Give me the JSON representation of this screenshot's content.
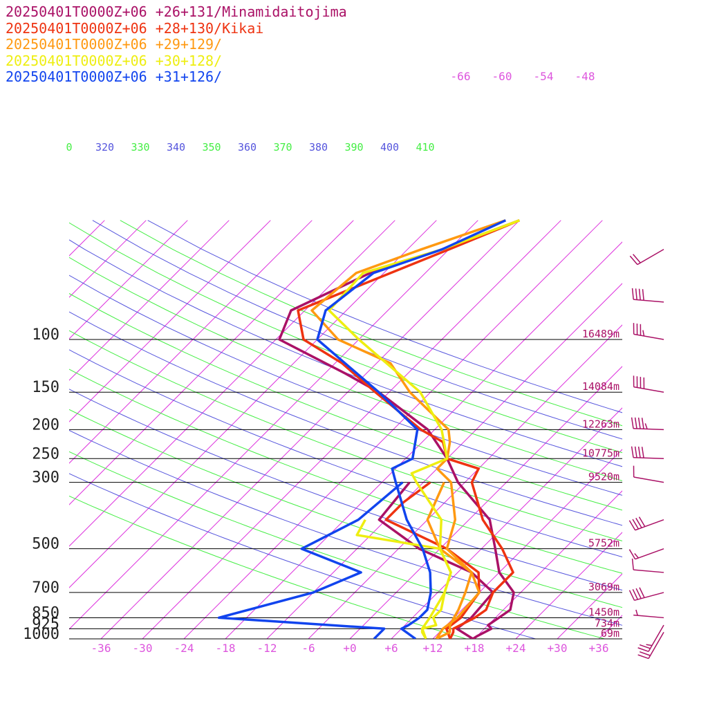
{
  "chart_data": {
    "type": "line",
    "title": "",
    "ylabel": "",
    "xlabel": "",
    "y_scale": "log",
    "ylim": [
      1000,
      40
    ],
    "xlim": [
      -40,
      40
    ],
    "pressure_levels": [
      {
        "p": 100,
        "label": "100",
        "height": "16489m"
      },
      {
        "p": 150,
        "label": "150",
        "height": "14084m"
      },
      {
        "p": 200,
        "label": "200",
        "height": "12263m"
      },
      {
        "p": 250,
        "label": "250",
        "height": "10775m"
      },
      {
        "p": 300,
        "label": "300",
        "height": "9520m"
      },
      {
        "p": 500,
        "label": "500",
        "height": "5752m"
      },
      {
        "p": 700,
        "label": "700",
        "height": "3069m"
      },
      {
        "p": 850,
        "label": "850",
        "height": "1450m"
      },
      {
        "p": 925,
        "label": "925",
        "height": "734m"
      },
      {
        "p": 1000,
        "label": "1000",
        "height": "69m"
      }
    ],
    "temperature_ticks": [
      "-36",
      "-30",
      "-24",
      "-18",
      "-12",
      "-6",
      "+0",
      "+6",
      "+12",
      "+18",
      "+24",
      "+30",
      "+36"
    ],
    "temperature_tick_values": [
      -36,
      -30,
      -24,
      -18,
      -12,
      -6,
      0,
      6,
      12,
      18,
      24,
      30,
      36
    ],
    "isotherm_upper_labels": [
      "-66",
      "-60",
      "-54",
      "-48"
    ],
    "theta_labels": [
      {
        "text": "0",
        "color": "#44ee44"
      },
      {
        "text": "320",
        "color": "#5555dd"
      },
      {
        "text": "330",
        "color": "#44ee44"
      },
      {
        "text": "340",
        "color": "#5555dd"
      },
      {
        "text": "350",
        "color": "#44ee44"
      },
      {
        "text": "360",
        "color": "#5555dd"
      },
      {
        "text": "370",
        "color": "#44ee44"
      },
      {
        "text": "380",
        "color": "#5555dd"
      },
      {
        "text": "390",
        "color": "#44ee44"
      },
      {
        "text": "400",
        "color": "#5555dd"
      },
      {
        "text": "410",
        "color": "#44ee44"
      }
    ],
    "series": [
      {
        "name": "20250401T0000Z+06 +26+131/Minamidaitojima",
        "color": "#aa1166",
        "temperature": [
          [
            1000,
            17.8
          ],
          [
            980,
            18.0
          ],
          [
            925,
            19.0
          ],
          [
            900,
            18.0
          ],
          [
            850,
            18.5
          ],
          [
            800,
            19.0
          ],
          [
            700,
            17.0
          ],
          [
            600,
            12.0
          ],
          [
            500,
            8.0
          ],
          [
            400,
            3.0
          ],
          [
            300,
            -7.0
          ],
          [
            250,
            -12.0
          ],
          [
            200,
            -19.0
          ],
          [
            150,
            -31.5
          ],
          [
            130,
            -39.0
          ],
          [
            100,
            -53.5
          ],
          [
            80,
            -56.0
          ],
          [
            60,
            -50.0
          ],
          [
            50,
            -43.0
          ],
          [
            40,
            -36.0
          ]
        ],
        "dewpoint": [
          [
            300,
            -14.0
          ],
          [
            400,
            -13.0
          ],
          [
            500,
            -3.0
          ],
          [
            600,
            8.0
          ],
          [
            700,
            14.0
          ],
          [
            850,
            14.5
          ],
          [
            925,
            14.0
          ],
          [
            1000,
            17.8
          ]
        ]
      },
      {
        "name": "20250401T0000Z+06 +28+130/Kikai",
        "color": "#ee3311",
        "temperature": [
          [
            1000,
            14.5
          ],
          [
            950,
            14.0
          ],
          [
            925,
            13.5
          ],
          [
            900,
            14.0
          ],
          [
            850,
            15.0
          ],
          [
            800,
            15.5
          ],
          [
            700,
            14.0
          ],
          [
            600,
            14.0
          ],
          [
            500,
            9.0
          ],
          [
            400,
            2.0
          ],
          [
            300,
            -5.0
          ],
          [
            270,
            -6.0
          ],
          [
            250,
            -12.0
          ],
          [
            220,
            -15.0
          ],
          [
            200,
            -20.0
          ],
          [
            150,
            -32.0
          ],
          [
            120,
            -41.0
          ],
          [
            100,
            -50.0
          ],
          [
            80,
            -55.0
          ],
          [
            50,
            -42.0
          ],
          [
            40,
            -36.0
          ]
        ],
        "dewpoint": [
          [
            300,
            -11.0
          ],
          [
            350,
            -12.0
          ],
          [
            400,
            -12.0
          ],
          [
            500,
            1.0
          ],
          [
            600,
            9.0
          ],
          [
            700,
            12.0
          ],
          [
            850,
            13.0
          ],
          [
            925,
            12.5
          ],
          [
            1000,
            14.5
          ]
        ]
      },
      {
        "name": "20250401T0000Z+06 +29+129/",
        "color": "#ff9911",
        "temperature": [
          [
            1000,
            12.5
          ],
          [
            950,
            13.5
          ],
          [
            925,
            13.0
          ],
          [
            900,
            12.5
          ],
          [
            850,
            12.0
          ],
          [
            800,
            11.5
          ],
          [
            700,
            10.0
          ],
          [
            600,
            8.0
          ],
          [
            500,
            1.0
          ],
          [
            400,
            -2.0
          ],
          [
            300,
            -8.0
          ],
          [
            270,
            -12.0
          ],
          [
            250,
            -12.0
          ],
          [
            220,
            -14.0
          ],
          [
            200,
            -16.0
          ],
          [
            150,
            -27.0
          ],
          [
            120,
            -34.0
          ],
          [
            100,
            -45.0
          ],
          [
            80,
            -53.0
          ],
          [
            60,
            -52.0
          ],
          [
            50,
            -46.0
          ],
          [
            40,
            -38.0
          ]
        ],
        "dewpoint": [
          [
            300,
            -9.0
          ],
          [
            400,
            -6.0
          ],
          [
            500,
            0.0
          ],
          [
            600,
            8.0
          ],
          [
            700,
            12.0
          ],
          [
            850,
            12.5
          ],
          [
            925,
            12.0
          ],
          [
            1000,
            12.5
          ]
        ]
      },
      {
        "name": "20250401T0000Z+06 +30+128/",
        "color": "#eeee11",
        "temperature": [
          [
            1000,
            11.0
          ],
          [
            950,
            9.5
          ],
          [
            925,
            9.0
          ],
          [
            900,
            10.5
          ],
          [
            850,
            9.0
          ],
          [
            800,
            9.0
          ],
          [
            700,
            7.0
          ],
          [
            600,
            5.0
          ],
          [
            500,
            0.0
          ],
          [
            400,
            -4.0
          ],
          [
            300,
            -13.0
          ],
          [
            280,
            -15.0
          ],
          [
            250,
            -12.0
          ],
          [
            200,
            -17.0
          ],
          [
            150,
            -25.5
          ],
          [
            100,
            -42.0
          ],
          [
            80,
            -50.5
          ],
          [
            60,
            -51.0
          ],
          [
            50,
            -43.0
          ],
          [
            40,
            -36.0
          ]
        ],
        "dewpoint": [
          [
            400,
            -15.0
          ],
          [
            450,
            -14.0
          ],
          [
            500,
            0.0
          ],
          [
            600,
            5.0
          ],
          [
            700,
            7.0
          ],
          [
            850,
            8.5
          ],
          [
            925,
            9.0
          ],
          [
            1000,
            11.0
          ]
        ]
      },
      {
        "name": "20250401T0000Z+06 +31+126/",
        "color": "#1144ee",
        "temperature": [
          [
            1000,
            9.5
          ],
          [
            925,
            6.0
          ],
          [
            900,
            6.5
          ],
          [
            850,
            7.0
          ],
          [
            800,
            7.0
          ],
          [
            700,
            5.0
          ],
          [
            600,
            2.0
          ],
          [
            500,
            -2.5
          ],
          [
            400,
            -9.0
          ],
          [
            300,
            -16.0
          ],
          [
            270,
            -18.5
          ],
          [
            250,
            -17.0
          ],
          [
            200,
            -20.5
          ],
          [
            150,
            -31.5
          ],
          [
            100,
            -48.0
          ],
          [
            80,
            -51.0
          ],
          [
            60,
            -49.5
          ],
          [
            50,
            -43.0
          ],
          [
            40,
            -38.0
          ]
        ],
        "dewpoint": [
          [
            1000,
            3.5
          ],
          [
            925,
            3.5
          ],
          [
            850,
            -22.0
          ],
          [
            700,
            -12.0
          ],
          [
            600,
            -8.0
          ],
          [
            500,
            -20.0
          ],
          [
            400,
            -16.0
          ],
          [
            300,
            -15.0
          ]
        ]
      }
    ],
    "wind_barbs": [
      {
        "p": 50,
        "color": "#aa1166",
        "speed_kt": 20,
        "direction_deg": 240
      },
      {
        "p": 75,
        "color": "#aa1166",
        "speed_kt": 40,
        "direction_deg": 275
      },
      {
        "p": 100,
        "color": "#aa1166",
        "speed_kt": 35,
        "direction_deg": 280
      },
      {
        "p": 150,
        "color": "#aa1166",
        "speed_kt": 40,
        "direction_deg": 280
      },
      {
        "p": 200,
        "color": "#aa1166",
        "speed_kt": 45,
        "direction_deg": 272
      },
      {
        "p": 250,
        "color": "#aa1166",
        "speed_kt": 40,
        "direction_deg": 272
      },
      {
        "p": 300,
        "color": "#aa1166",
        "speed_kt": 10,
        "direction_deg": 280
      },
      {
        "p": 400,
        "color": "#aa1166",
        "speed_kt": 40,
        "direction_deg": 250
      },
      {
        "p": 500,
        "color": "#aa1166",
        "speed_kt": 15,
        "direction_deg": 250
      },
      {
        "p": 600,
        "color": "#aa1166",
        "speed_kt": 10,
        "direction_deg": 275
      },
      {
        "p": 700,
        "color": "#aa1166",
        "speed_kt": 40,
        "direction_deg": 255
      },
      {
        "p": 850,
        "color": "#aa1166",
        "speed_kt": 5,
        "direction_deg": 275
      },
      {
        "p": 900,
        "color": "#aa1166",
        "speed_kt": 25,
        "direction_deg": 210
      },
      {
        "p": 950,
        "color": "#aa1166",
        "speed_kt": 20,
        "direction_deg": 210
      }
    ]
  }
}
